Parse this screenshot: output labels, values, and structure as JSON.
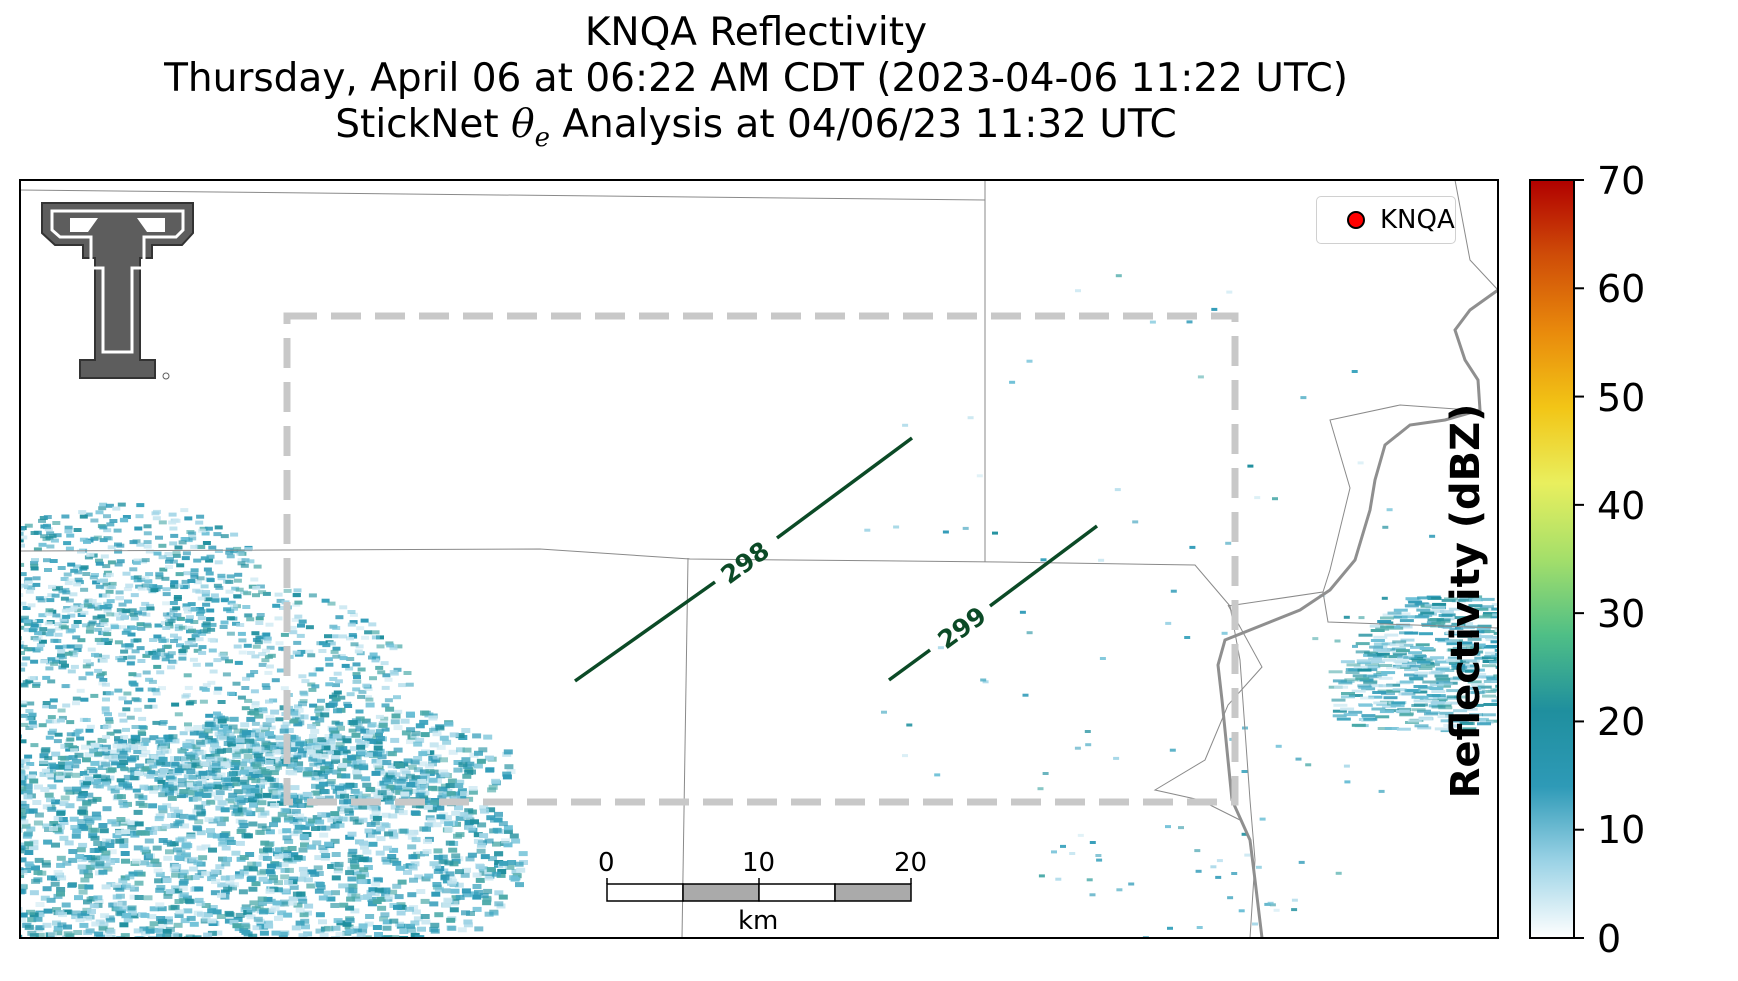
{
  "title": {
    "line1": "KNQA Reflectivity",
    "line2": "Thursday, April 06 at 06:22 AM CDT (2023-04-06 11:22 UTC)",
    "line3_prefix": "StickNet ",
    "line3_theta": "θ",
    "line3_sub": "e",
    "line3_suffix": " Analysis at 04/06/23 11:32 UTC"
  },
  "legend": {
    "label": "KNQA",
    "marker_color": "#ff0000"
  },
  "contours": [
    {
      "value": 298,
      "label": "298",
      "color": "#0b4a26"
    },
    {
      "value": 299,
      "label": "299",
      "color": "#0b4a26"
    }
  ],
  "colorbar": {
    "label": "Reflectivity (dBZ)",
    "min": 0,
    "max": 70,
    "ticks": [
      "0",
      "10",
      "20",
      "30",
      "40",
      "50",
      "60",
      "70"
    ],
    "colors": [
      "#ffffff",
      "#9cd3e6",
      "#2e9ab7",
      "#1f8f9e",
      "#4fbf86",
      "#a4df6a",
      "#e9ef5e",
      "#f2c516",
      "#e98a0c",
      "#cf4d08",
      "#b10000"
    ]
  },
  "scale_bar": {
    "ticks": [
      "0",
      "10",
      "20"
    ],
    "unit": "km"
  },
  "logo": {
    "name": "Texas Tech double T",
    "color": "#5d5d5d"
  },
  "reflectivity_color": "#2e9ab7",
  "analysis_box_color": "#c8c8c8"
}
